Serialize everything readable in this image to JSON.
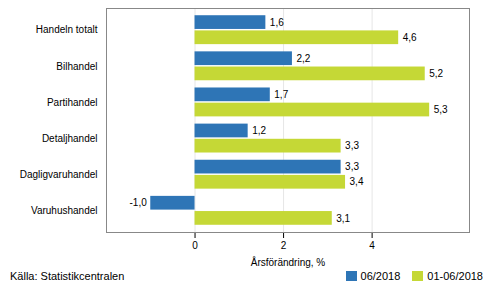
{
  "chart_data": {
    "type": "bar",
    "orientation": "horizontal",
    "categories": [
      "Varuhushandel",
      "Dagligvaruhandel",
      "Detaljhandel",
      "Partihandel",
      "Bilhandel",
      "Handeln totalt"
    ],
    "series": [
      {
        "name": "06/2018",
        "color": "#2E75B6",
        "values": [
          -1.0,
          3.3,
          1.2,
          1.7,
          2.2,
          1.6
        ],
        "value_labels": [
          "-1,0",
          "3,3",
          "1,2",
          "1,7",
          "2,2",
          "1,6"
        ]
      },
      {
        "name": "01-06/2018",
        "color": "#C5D836",
        "values": [
          3.1,
          3.4,
          3.3,
          5.3,
          5.2,
          4.6
        ],
        "value_labels": [
          "3,1",
          "3,4",
          "3,3",
          "5,3",
          "5,2",
          "4,6"
        ]
      }
    ],
    "xlabel": "Årsförändring, %",
    "xlim": [
      -2.0,
      6.2
    ],
    "xticks": [
      0,
      2,
      4
    ],
    "grid": true,
    "legend": "lower right",
    "data_labels": true,
    "source": "Källa: Statistikcentralen"
  }
}
